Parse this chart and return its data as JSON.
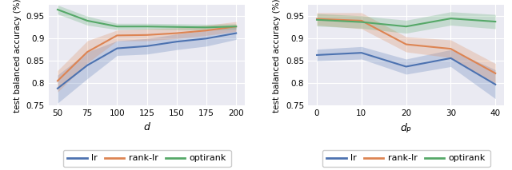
{
  "plot1": {
    "x": [
      50,
      75,
      100,
      125,
      150,
      175,
      200
    ],
    "lr_mean": [
      0.788,
      0.84,
      0.878,
      0.883,
      0.893,
      0.9,
      0.912
    ],
    "lr_lo": [
      0.755,
      0.81,
      0.862,
      0.865,
      0.875,
      0.883,
      0.898
    ],
    "lr_hi": [
      0.818,
      0.87,
      0.895,
      0.9,
      0.91,
      0.918,
      0.926
    ],
    "rank_lr_mean": [
      0.805,
      0.87,
      0.907,
      0.908,
      0.912,
      0.918,
      0.927
    ],
    "rank_lr_lo": [
      0.78,
      0.845,
      0.895,
      0.895,
      0.9,
      0.907,
      0.916
    ],
    "rank_lr_hi": [
      0.828,
      0.895,
      0.919,
      0.922,
      0.924,
      0.93,
      0.938
    ],
    "optirank_mean": [
      0.965,
      0.94,
      0.927,
      0.927,
      0.926,
      0.925,
      0.927
    ],
    "optirank_lo": [
      0.955,
      0.93,
      0.92,
      0.921,
      0.92,
      0.919,
      0.921
    ],
    "optirank_hi": [
      0.975,
      0.95,
      0.934,
      0.934,
      0.933,
      0.932,
      0.933
    ],
    "ylim": [
      0.75,
      0.975
    ],
    "yticks": [
      0.75,
      0.8,
      0.85,
      0.9,
      0.95
    ],
    "xticks": [
      50,
      75,
      100,
      125,
      150,
      175,
      200
    ],
    "xlabel": "d"
  },
  "plot2": {
    "x": [
      0,
      10,
      20,
      30,
      40
    ],
    "lr_mean": [
      0.863,
      0.868,
      0.837,
      0.856,
      0.797
    ],
    "lr_lo": [
      0.85,
      0.854,
      0.82,
      0.837,
      0.765
    ],
    "lr_hi": [
      0.876,
      0.882,
      0.854,
      0.875,
      0.83
    ],
    "rank_lr_mean": [
      0.944,
      0.94,
      0.887,
      0.877,
      0.822
    ],
    "rank_lr_lo": [
      0.93,
      0.922,
      0.87,
      0.857,
      0.8
    ],
    "rank_lr_hi": [
      0.958,
      0.958,
      0.904,
      0.897,
      0.844
    ],
    "optirank_mean": [
      0.942,
      0.937,
      0.927,
      0.945,
      0.938
    ],
    "optirank_lo": [
      0.928,
      0.923,
      0.912,
      0.93,
      0.922
    ],
    "optirank_hi": [
      0.956,
      0.951,
      0.941,
      0.96,
      0.954
    ],
    "ylim": [
      0.75,
      0.975
    ],
    "yticks": [
      0.75,
      0.8,
      0.85,
      0.9,
      0.95
    ],
    "xticks": [
      0,
      10,
      20,
      30,
      40
    ],
    "xlabel": "d_P"
  },
  "colors": {
    "lr": "#4c72b0",
    "rank_lr": "#dd8452",
    "optirank": "#55a868"
  },
  "alpha_fill": 0.25,
  "linewidth": 1.5,
  "bg_color": "#eaeaf2",
  "grid_color": "white",
  "ylabel": "test balanced accuracy (%)"
}
